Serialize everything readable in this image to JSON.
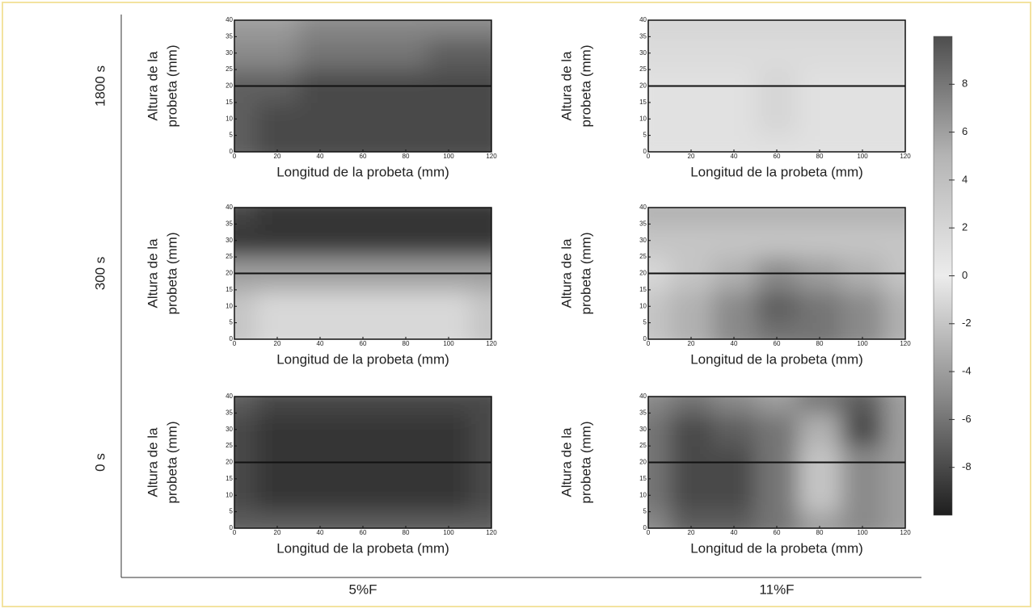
{
  "row_labels": [
    "1800 s",
    "300 s",
    "0 s"
  ],
  "column_labels": [
    "5%F",
    "11%F"
  ],
  "colorbar": {
    "clim": [
      -10,
      10
    ],
    "colors": [
      "#1e1e1e",
      "#8a8a8a",
      "#ececec",
      "#b4b4b4",
      "#4e4e4e"
    ],
    "ticks": [
      8,
      6,
      4,
      2,
      0,
      -2,
      -4,
      -6,
      -8
    ]
  },
  "chart_data": [
    {
      "type": "contour",
      "x_label": "Longitud de la probeta (mm)",
      "y_label": [
        "Altura de la",
        "probeta (mm)"
      ],
      "x": [
        0,
        20,
        40,
        60,
        80,
        100,
        120
      ],
      "y": [
        0,
        10,
        20,
        30,
        40
      ],
      "z": [
        [
          -7,
          -8,
          -8,
          -8,
          -8,
          -8,
          -8
        ],
        [
          -7,
          -8,
          -8,
          -8,
          -8,
          -8,
          -8
        ],
        [
          -7,
          -7,
          -8,
          -8,
          -8,
          -8,
          -8
        ],
        [
          -5,
          -5,
          -6,
          -6,
          -6,
          -7,
          -7
        ],
        [
          -4,
          -4,
          -5,
          -5,
          -5,
          -5,
          -5
        ]
      ],
      "xlim": [
        0,
        120
      ],
      "ylim": [
        0,
        40
      ],
      "xticks": [
        0,
        20,
        40,
        60,
        80,
        100,
        120
      ],
      "yticks": [
        0,
        5,
        10,
        15,
        20,
        25,
        30,
        35,
        40
      ],
      "hline": 20
    },
    {
      "type": "contour",
      "x_label": "Longitud de la probeta (mm)",
      "y_label": [
        "Altura de la",
        "probeta (mm)"
      ],
      "x": [
        0,
        20,
        40,
        60,
        80,
        100,
        120
      ],
      "y": [
        0,
        10,
        20,
        30,
        40
      ],
      "z": [
        [
          1,
          1,
          1,
          1,
          1,
          1,
          1
        ],
        [
          1,
          1,
          1,
          2,
          1,
          1,
          1
        ],
        [
          1,
          1,
          1,
          2,
          1,
          1,
          1
        ],
        [
          1.5,
          1.5,
          1.5,
          1.5,
          1.5,
          1.5,
          1.5
        ],
        [
          2,
          2,
          2,
          2,
          2,
          2,
          2
        ]
      ],
      "xlim": [
        0,
        120
      ],
      "ylim": [
        0,
        40
      ],
      "xticks": [
        0,
        20,
        40,
        60,
        80,
        100,
        120
      ],
      "yticks": [
        0,
        5,
        10,
        15,
        20,
        25,
        30,
        35,
        40
      ],
      "hline": 20
    },
    {
      "type": "contour",
      "x_label": "Longitud de la probeta (mm)",
      "y_label": [
        "Altura de la",
        "probeta (mm)"
      ],
      "x": [
        0,
        20,
        40,
        60,
        80,
        100,
        120
      ],
      "y": [
        0,
        10,
        20,
        30,
        40
      ],
      "z": [
        [
          -2,
          -1,
          -1,
          -1,
          -1,
          -1,
          -2
        ],
        [
          -2,
          -1,
          -1,
          -1,
          -1,
          -1,
          -2
        ],
        [
          -4,
          -4,
          -4,
          -4,
          -4,
          -4,
          -4
        ],
        [
          -9,
          -9,
          -9,
          -9,
          -9,
          -9,
          -9
        ],
        [
          -8,
          -9,
          -9,
          -9,
          -9,
          -9,
          -9
        ]
      ],
      "xlim": [
        0,
        120
      ],
      "ylim": [
        0,
        40
      ],
      "xticks": [
        0,
        20,
        40,
        60,
        80,
        100,
        120
      ],
      "yticks": [
        0,
        5,
        10,
        15,
        20,
        25,
        30,
        35,
        40
      ],
      "hline": 20
    },
    {
      "type": "contour",
      "x_label": "Longitud de la probeta (mm)",
      "y_label": [
        "Altura de la",
        "probeta (mm)"
      ],
      "x": [
        0,
        20,
        40,
        60,
        80,
        100,
        120
      ],
      "y": [
        0,
        10,
        20,
        30,
        40
      ],
      "z": [
        [
          -2,
          -3,
          -5,
          -6,
          -6,
          -5,
          -3
        ],
        [
          -2,
          -3,
          -5,
          -7,
          -6,
          -5,
          -3
        ],
        [
          -1,
          -2,
          -3,
          -5,
          -4,
          -3,
          -2
        ],
        [
          -2,
          -2,
          -2,
          -2,
          -2,
          -2,
          -2
        ],
        [
          -3,
          -3,
          -3,
          -3,
          -3,
          -3,
          -3
        ]
      ],
      "xlim": [
        0,
        120
      ],
      "ylim": [
        0,
        40
      ],
      "xticks": [
        0,
        20,
        40,
        60,
        80,
        100,
        120
      ],
      "yticks": [
        0,
        5,
        10,
        15,
        20,
        25,
        30,
        35,
        40
      ],
      "hline": 20
    },
    {
      "type": "contour",
      "x_label": "Longitud de la probeta (mm)",
      "y_label": [
        "Altura de la",
        "probeta (mm)"
      ],
      "x": [
        0,
        20,
        40,
        60,
        80,
        100,
        120
      ],
      "y": [
        0,
        10,
        20,
        30,
        40
      ],
      "z": [
        [
          -7,
          -7,
          -7,
          -7,
          -7,
          -7,
          -7
        ],
        [
          -8,
          -9,
          -9,
          -9,
          -9,
          -9,
          -8
        ],
        [
          -8,
          -9,
          -9,
          -9,
          -9,
          -9,
          -8
        ],
        [
          -8,
          -9,
          -9,
          -9,
          -9,
          -9,
          -8
        ],
        [
          -7,
          -8,
          -8,
          -8,
          -8,
          -8,
          -8
        ]
      ],
      "xlim": [
        0,
        120
      ],
      "ylim": [
        0,
        40
      ],
      "xticks": [
        0,
        20,
        40,
        60,
        80,
        100,
        120
      ],
      "yticks": [
        0,
        5,
        10,
        15,
        20,
        25,
        30,
        35,
        40
      ],
      "hline": 20
    },
    {
      "type": "contour",
      "x_label": "Longitud de la probeta (mm)",
      "y_label": [
        "Altura de la",
        "probeta (mm)"
      ],
      "x": [
        0,
        20,
        40,
        60,
        80,
        100,
        120
      ],
      "y": [
        0,
        10,
        20,
        30,
        40
      ],
      "z": [
        [
          -5,
          -7,
          -7,
          -6,
          -4,
          -5,
          -4
        ],
        [
          -6,
          -8,
          -8,
          -6,
          -2,
          -5,
          -4
        ],
        [
          -6,
          -8,
          -8,
          -6,
          -2,
          -5,
          -4
        ],
        [
          -6,
          -8,
          -7,
          -6,
          -3,
          -8,
          -4
        ],
        [
          -5,
          -6,
          -5,
          -4,
          -6,
          -7,
          -4
        ]
      ],
      "xlim": [
        0,
        120
      ],
      "ylim": [
        0,
        40
      ],
      "xticks": [
        0,
        20,
        40,
        60,
        80,
        100,
        120
      ],
      "yticks": [
        0,
        5,
        10,
        15,
        20,
        25,
        30,
        35,
        40
      ],
      "hline": 20
    }
  ]
}
